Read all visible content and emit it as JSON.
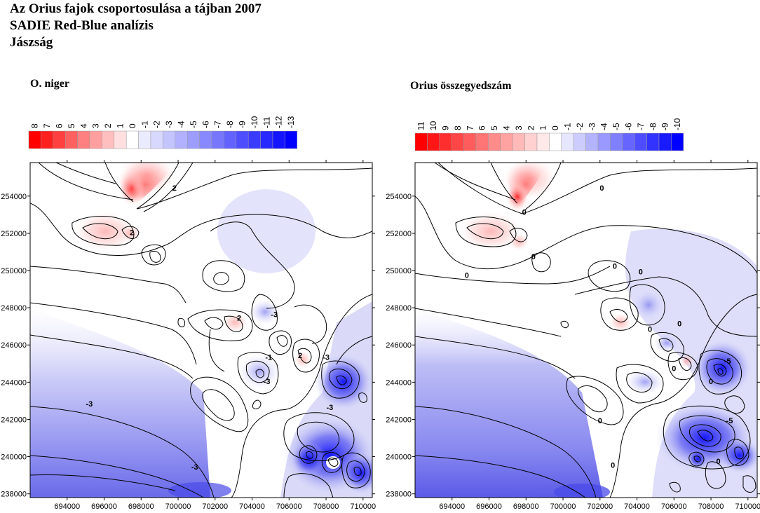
{
  "header": {
    "line1": "Az Orius fajok csoportosulása a tájban 2007",
    "line2": "SADIE Red-Blue analízis",
    "line3": "Jászság"
  },
  "colors": {
    "red": "#ff0000",
    "blue": "#0000ff",
    "white": "#ffffff",
    "contour": "#000000"
  },
  "chart_data": [
    {
      "type": "heatmap",
      "title": "O. niger",
      "legend_levels": [
        "8",
        "7",
        "6",
        "5",
        "4",
        "3",
        "2",
        "1",
        "0",
        "-1",
        "-2",
        "-3",
        "-4",
        "-5",
        "-6",
        "-7",
        "-8",
        "-9",
        "-10",
        "-11",
        "-12",
        "-13"
      ],
      "x_ticks": [
        694000,
        696000,
        698000,
        700000,
        702000,
        704000,
        706000,
        708000,
        710000
      ],
      "y_ticks": [
        238000,
        240000,
        242000,
        244000,
        246000,
        248000,
        250000,
        252000,
        254000
      ],
      "xlim": [
        692000,
        710500
      ],
      "ylim": [
        237800,
        255800
      ],
      "contour_labels": [
        {
          "text": "2",
          "x": 697500,
          "y": 251900
        },
        {
          "text": "2",
          "x": 699800,
          "y": 254300
        },
        {
          "text": "2",
          "x": 703300,
          "y": 247300
        },
        {
          "text": "-3",
          "x": 705200,
          "y": 247500
        },
        {
          "text": "-1",
          "x": 704900,
          "y": 245200
        },
        {
          "text": "2",
          "x": 706600,
          "y": 245300
        },
        {
          "text": "-3",
          "x": 708000,
          "y": 245200
        },
        {
          "text": "-3",
          "x": 704800,
          "y": 243900
        },
        {
          "text": "-3",
          "x": 708200,
          "y": 242500
        },
        {
          "text": "-3",
          "x": 695200,
          "y": 242700
        },
        {
          "text": "-3",
          "x": 700900,
          "y": 239300
        }
      ]
    },
    {
      "type": "heatmap",
      "title": "Orius összegyedszám",
      "legend_levels": [
        "11",
        "10",
        "9",
        "8",
        "7",
        "6",
        "5",
        "4",
        "3",
        "2",
        "1",
        "0",
        "-1",
        "-2",
        "-3",
        "-4",
        "-5",
        "-6",
        "-7",
        "-8",
        "-9",
        "-10"
      ],
      "x_ticks": [
        694000,
        696000,
        698000,
        700000,
        702000,
        704000,
        706000,
        708000,
        710000
      ],
      "y_ticks": [
        238000,
        240000,
        242000,
        244000,
        246000,
        248000,
        250000,
        252000,
        254000
      ],
      "xlim": [
        692000,
        710500
      ],
      "ylim": [
        237800,
        255800
      ],
      "contour_labels": [
        {
          "text": "0",
          "x": 694800,
          "y": 249600
        },
        {
          "text": "0",
          "x": 697900,
          "y": 253000
        },
        {
          "text": "0",
          "x": 698400,
          "y": 250600
        },
        {
          "text": "0",
          "x": 702100,
          "y": 254300
        },
        {
          "text": "0",
          "x": 702800,
          "y": 250100
        },
        {
          "text": "0",
          "x": 704200,
          "y": 249800
        },
        {
          "text": "0",
          "x": 704700,
          "y": 246700
        },
        {
          "text": "0",
          "x": 706300,
          "y": 247000
        },
        {
          "text": "0",
          "x": 706000,
          "y": 244600
        },
        {
          "text": "0",
          "x": 708000,
          "y": 243900
        },
        {
          "text": "-5",
          "x": 708900,
          "y": 245000
        },
        {
          "text": "-5",
          "x": 709000,
          "y": 241800
        },
        {
          "text": "0",
          "x": 702000,
          "y": 241800
        },
        {
          "text": "0",
          "x": 702700,
          "y": 239400
        },
        {
          "text": "0",
          "x": 708400,
          "y": 239600
        }
      ]
    }
  ]
}
